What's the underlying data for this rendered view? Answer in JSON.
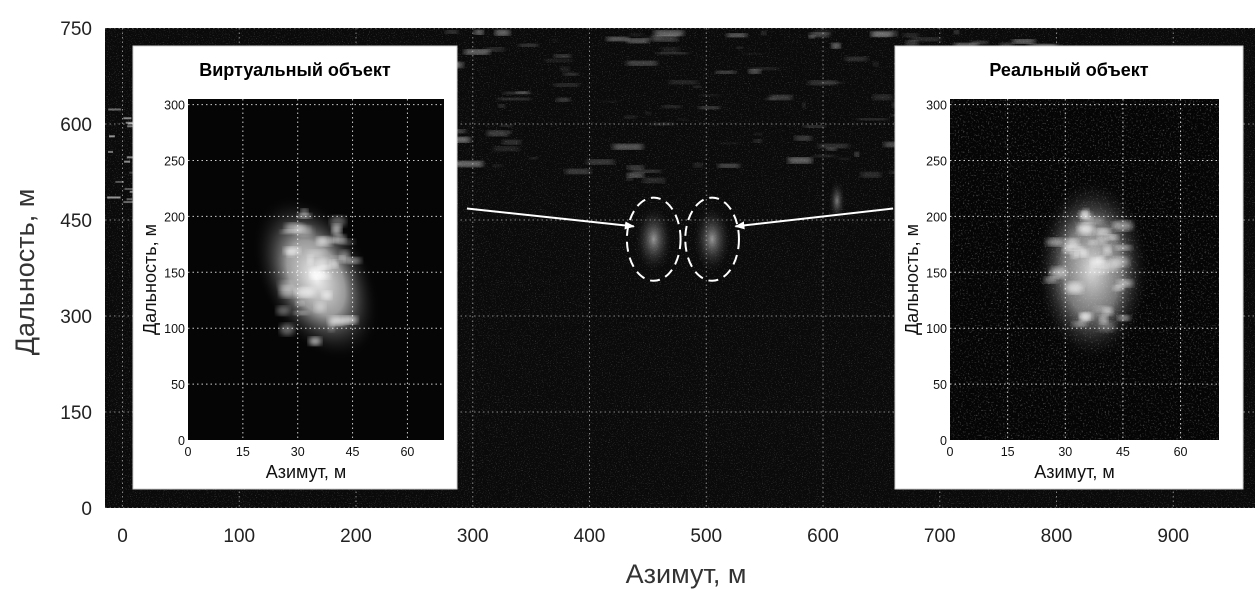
{
  "chart_data": {
    "type": "heatmap",
    "xlabel": "Азимут, м",
    "ylabel": "Дальность, м",
    "xlim": [
      -15,
      970
    ],
    "ylim": [
      0,
      750
    ],
    "xticks": [
      0,
      100,
      200,
      300,
      400,
      500,
      600,
      700,
      800,
      900
    ],
    "yticks": [
      0,
      150,
      300,
      450,
      600,
      750
    ],
    "grid": true,
    "annotations": [
      {
        "shape": "ellipse",
        "center": [
          455,
          420
        ],
        "semi_axes": [
          23,
          65
        ]
      },
      {
        "shape": "ellipse",
        "center": [
          505,
          420
        ],
        "semi_axes": [
          23,
          65
        ]
      },
      {
        "shape": "arrow",
        "from": [
          295,
          468
        ],
        "to": [
          438,
          440
        ]
      },
      {
        "shape": "arrow",
        "from": [
          660,
          468
        ],
        "to": [
          525,
          440
        ]
      }
    ],
    "insets": [
      {
        "title": "Виртуальный объект",
        "xlabel": "Азимут, м",
        "ylabel": "Дальность, м",
        "xlim": [
          0,
          70
        ],
        "ylim": [
          0,
          305
        ],
        "xticks": [
          0,
          15,
          30,
          45,
          60
        ],
        "yticks": [
          0,
          50,
          100,
          150,
          200,
          250,
          300
        ],
        "grid": true,
        "target_extent": {
          "azimuth": [
            20,
            50
          ],
          "range": [
            65,
            225
          ]
        }
      },
      {
        "title": "Реальный объект",
        "xlabel": "Азимут, м",
        "ylabel": "Дальность, м",
        "xlim": [
          0,
          70
        ],
        "ylim": [
          0,
          305
        ],
        "xticks": [
          0,
          15,
          30,
          45,
          60
        ],
        "yticks": [
          0,
          50,
          100,
          150,
          200,
          250,
          300
        ],
        "grid": true,
        "target_extent": {
          "azimuth": [
            22,
            52
          ],
          "range": [
            70,
            235
          ]
        }
      }
    ]
  }
}
